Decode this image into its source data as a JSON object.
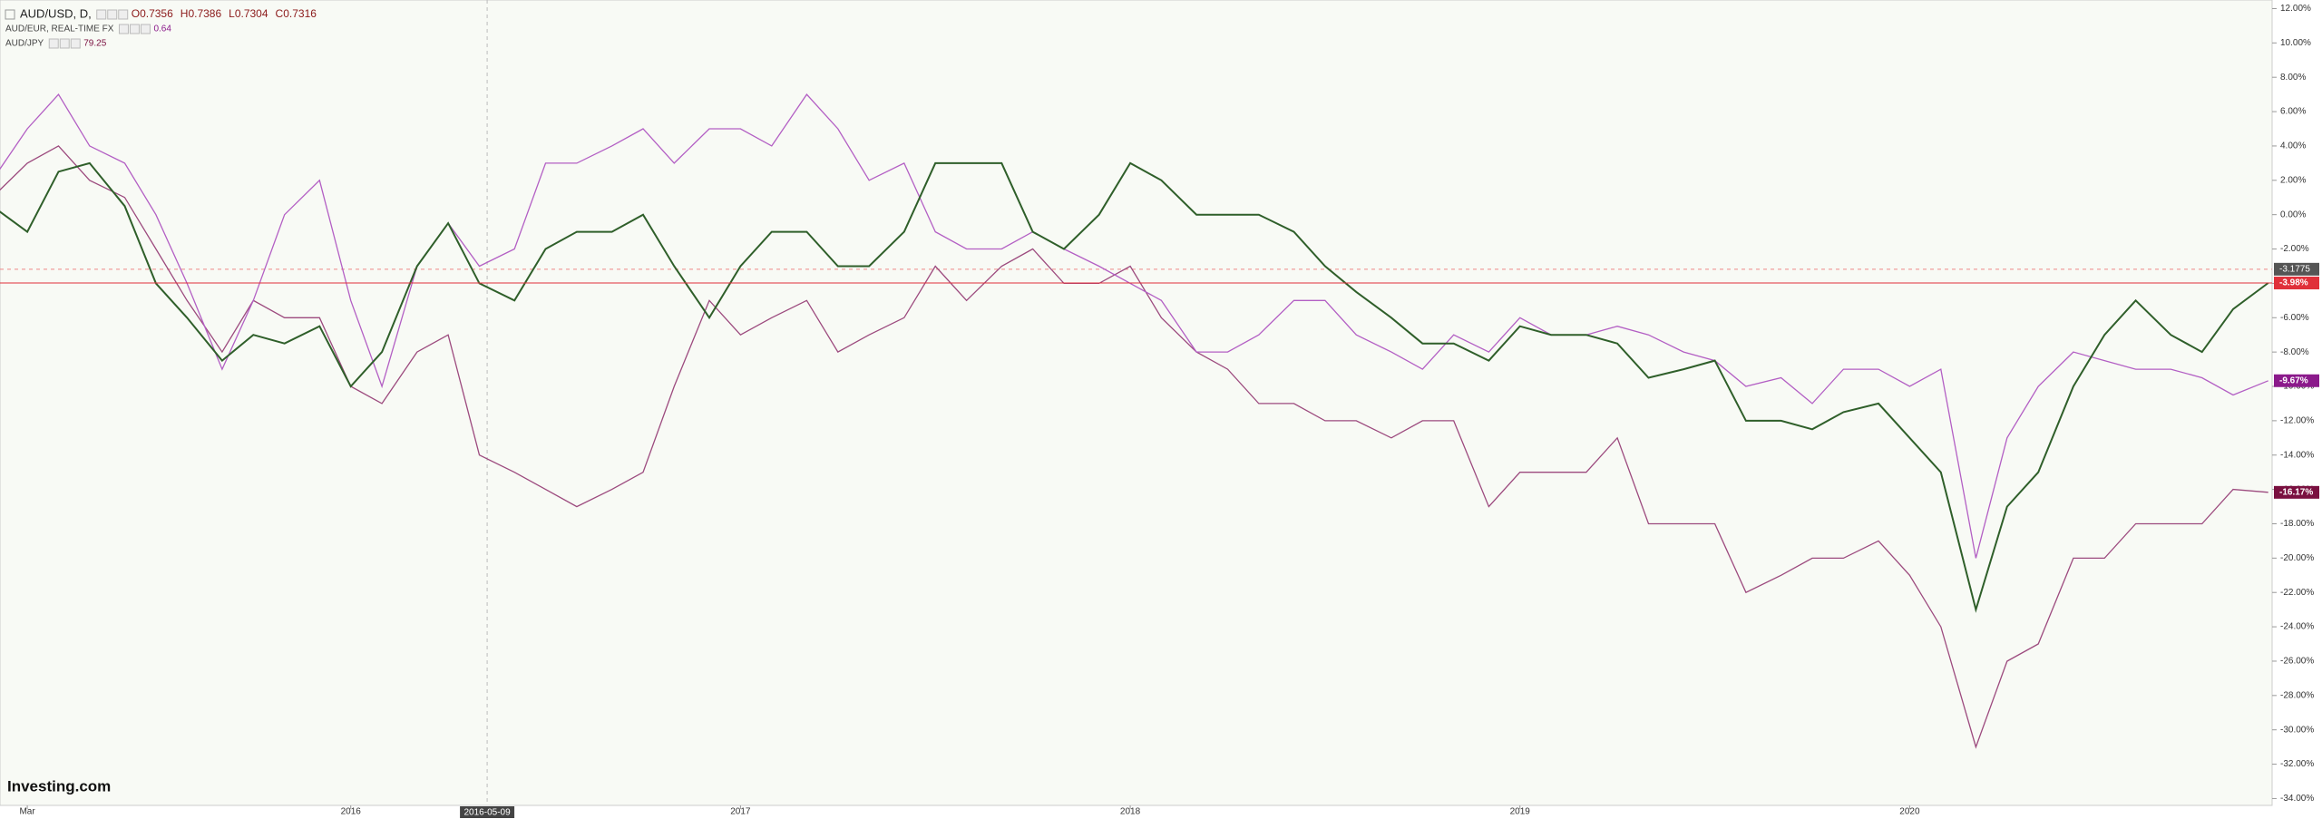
{
  "logo": "Investing.com",
  "chart_data": {
    "type": "line",
    "x": [
      2015.08,
      2015.17,
      2015.25,
      2015.33,
      2015.42,
      2015.5,
      2015.58,
      2015.67,
      2015.75,
      2015.83,
      2015.92,
      2016.0,
      2016.08,
      2016.17,
      2016.25,
      2016.33,
      2016.42,
      2016.5,
      2016.58,
      2016.67,
      2016.75,
      2016.83,
      2016.92,
      2017.0,
      2017.08,
      2017.17,
      2017.25,
      2017.33,
      2017.42,
      2017.5,
      2017.58,
      2017.67,
      2017.75,
      2017.83,
      2017.92,
      2018.0,
      2018.08,
      2018.17,
      2018.25,
      2018.33,
      2018.42,
      2018.5,
      2018.58,
      2018.67,
      2018.75,
      2018.83,
      2018.92,
      2019.0,
      2019.08,
      2019.17,
      2019.25,
      2019.33,
      2019.42,
      2019.5,
      2019.58,
      2019.67,
      2019.75,
      2019.83,
      2019.92,
      2020.0,
      2020.08,
      2020.17,
      2020.25,
      2020.33,
      2020.42,
      2020.5,
      2020.58,
      2020.67,
      2020.75,
      2020.83,
      2020.92
    ],
    "series": [
      {
        "name": "AUD/USD, D,",
        "color": "#2f5f2a",
        "label_color": "#e0303a",
        "last_label": "-3.98%",
        "info": [
          "O0.7356",
          "H0.7386",
          "L0.7304",
          "C0.7316"
        ],
        "values": [
          0.5,
          -1,
          2.5,
          3,
          0.5,
          -4,
          -6,
          -8.5,
          -7,
          -7.5,
          -6.5,
          -10,
          -8,
          -3,
          -0.5,
          -4,
          -5,
          -2,
          -1,
          -1,
          0,
          -3,
          -6,
          -3,
          -1,
          -1,
          -3,
          -3,
          -1,
          3,
          3,
          3,
          -1,
          -2,
          0,
          3,
          2,
          0,
          0,
          0,
          -1,
          -3,
          -4.5,
          -6,
          -7.5,
          -7.5,
          -8.5,
          -6.5,
          -7,
          -7,
          -7.5,
          -9.5,
          -9,
          -8.5,
          -12,
          -12,
          -12.5,
          -11.5,
          -11,
          -13,
          -15,
          -23,
          -17,
          -15,
          -10,
          -7,
          -5,
          -7,
          -8,
          -5.5,
          -3.98
        ]
      },
      {
        "name": "AUD/EUR, REAL-TIME FX",
        "color": "#b35fc4",
        "label_color": "#8b1a8b",
        "last_label": "-9.67%",
        "info": [
          "0.64"
        ],
        "values": [
          2,
          5,
          7,
          4,
          3,
          0,
          -4,
          -9,
          -5,
          0,
          2,
          -5,
          -10,
          -3,
          -0.5,
          -3,
          -2,
          3,
          3,
          4,
          5,
          3,
          5,
          5,
          4,
          7,
          5,
          2,
          3,
          -1,
          -2,
          -2,
          -1,
          -2,
          -3,
          -4,
          -5,
          -8,
          -8,
          -7,
          -5,
          -5,
          -7,
          -8,
          -9,
          -7,
          -8,
          -6,
          -7,
          -7,
          -6.5,
          -7,
          -8,
          -8.5,
          -10,
          -9.5,
          -11,
          -9,
          -9,
          -10,
          -9,
          -20,
          -13,
          -10,
          -8,
          -8.5,
          -9,
          -9,
          -9.5,
          -10.5,
          -9.67
        ]
      },
      {
        "name": "AUD/JPY",
        "color": "#9c4a7e",
        "label_color": "#7a1040",
        "last_label": "-16.17%",
        "info": [
          "79.25"
        ],
        "values": [
          1,
          3,
          4,
          2,
          1,
          -2,
          -5,
          -8,
          -5,
          -6,
          -6,
          -10,
          -11,
          -8,
          -7,
          -14,
          -15,
          -16,
          -17,
          -16,
          -15,
          -10,
          -5,
          -7,
          -6,
          -5,
          -8,
          -7,
          -6,
          -3,
          -5,
          -3,
          -2,
          -4,
          -4,
          -3,
          -6,
          -8,
          -9,
          -11,
          -11,
          -12,
          -12,
          -13,
          -12,
          -12,
          -17,
          -15,
          -15,
          -15,
          -13,
          -18,
          -18,
          -18,
          -22,
          -21,
          -20,
          -20,
          -19,
          -21,
          -24,
          -31,
          -26,
          -25,
          -20,
          -20,
          -18,
          -18,
          -18,
          -16,
          -16.17
        ]
      }
    ],
    "xlim": [
      2015.1,
      2020.93
    ],
    "xticks": [
      {
        "value": 2015.17,
        "label": "Mar"
      },
      2016,
      2017,
      2018,
      2019,
      2020
    ],
    "ylim": [
      -34.4,
      12.5
    ],
    "yticks": [
      {
        "value": 12,
        "label": "12.00%"
      },
      {
        "value": 10,
        "label": "10.00%"
      },
      {
        "value": 8,
        "label": "8.00%"
      },
      {
        "value": 6,
        "label": "6.00%"
      },
      {
        "value": 4,
        "label": "4.00%"
      },
      {
        "value": 2,
        "label": "2.00%"
      },
      {
        "value": 0,
        "label": "0.00%"
      },
      {
        "value": -2,
        "label": "-2.00%"
      },
      {
        "value": -4,
        "label": "-4.00%"
      },
      {
        "value": -6,
        "label": "-6.00%"
      },
      {
        "value": -8,
        "label": "-8.00%"
      },
      {
        "value": -10,
        "label": "-10.00%"
      },
      {
        "value": -12,
        "label": "-12.00%"
      },
      {
        "value": -14,
        "label": "-14.00%"
      },
      {
        "value": -16,
        "label": "-16.00%"
      },
      {
        "value": -18,
        "label": "-18.00%"
      },
      {
        "value": -20,
        "label": "-20.00%"
      },
      {
        "value": -22,
        "label": "-22.00%"
      },
      {
        "value": -24,
        "label": "-24.00%"
      },
      {
        "value": -26,
        "label": "-26.00%"
      },
      {
        "value": -28,
        "label": "-28.00%"
      },
      {
        "value": -30,
        "label": "-30.00%"
      },
      {
        "value": -32,
        "label": "-32.00%"
      },
      {
        "value": -34,
        "label": "-34.00%"
      }
    ],
    "crosshair": {
      "x": 2016.35,
      "x_label": "2016-05-09",
      "y": -3.1775
    }
  }
}
